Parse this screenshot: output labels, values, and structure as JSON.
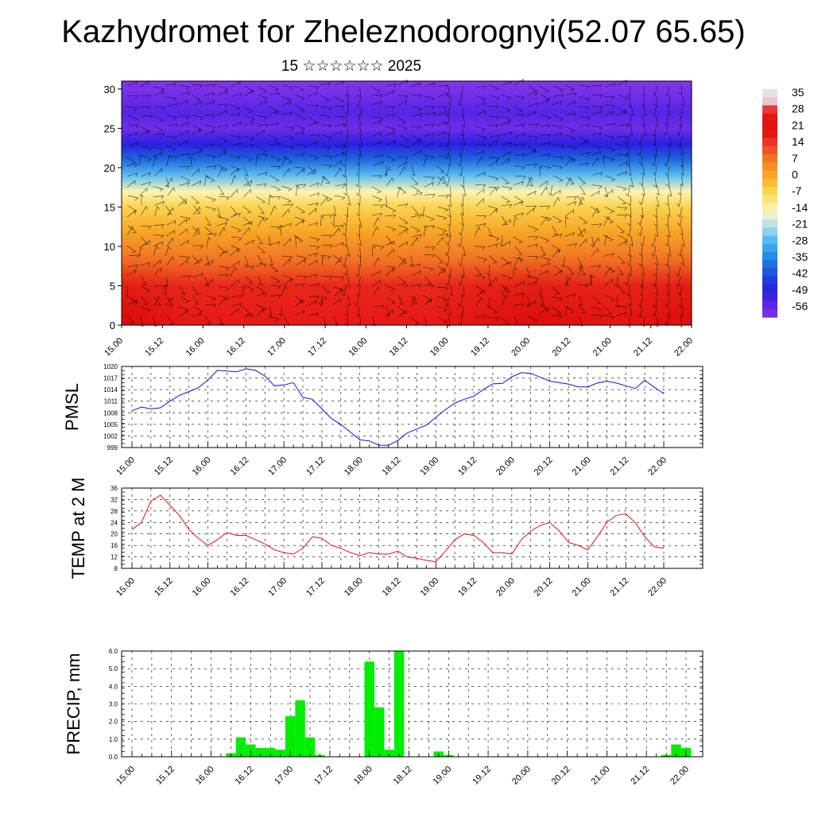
{
  "header": {
    "title": "Kazhydromet for Zheleznodorognyi(52.07 65.65)",
    "subtitle": "15 ☆☆☆☆☆☆ 2025"
  },
  "colorbar": {
    "labels": [
      "35",
      "28",
      "21",
      "14",
      "7",
      "0",
      "-7",
      "-14",
      "-21",
      "-28",
      "-35",
      "-42",
      "-49",
      "-56"
    ],
    "colors": [
      "#e8e0e8",
      "#ee2020",
      "#e01010",
      "#f04020",
      "#f48020",
      "#f8b020",
      "#fce060",
      "#fcf8c0",
      "#b8e0f0",
      "#40b0f0",
      "#2080e0",
      "#2040d8",
      "#4020e8",
      "#8030e8"
    ]
  },
  "x_ticks": [
    "15.00",
    "15.12",
    "16.00",
    "16.12",
    "17.00",
    "17.12",
    "18.00",
    "18.12",
    "19.00",
    "19.12",
    "20.00",
    "20.12",
    "21.00",
    "21.12",
    "22.00"
  ],
  "chart_data": [
    {
      "type": "heatmap",
      "title": "",
      "xlabel": "",
      "ylabel": "",
      "ylim": [
        0,
        31
      ],
      "y_ticks": [
        "0",
        "5",
        "10",
        "15",
        "20",
        "25",
        "30"
      ],
      "profile_levels": [
        0,
        5,
        8,
        12,
        15,
        17,
        19,
        21,
        23,
        25,
        27,
        29,
        31
      ],
      "profile_temps": [
        30,
        18,
        10,
        2,
        -5,
        -13,
        -26,
        -38,
        -49,
        -58,
        -54,
        -58,
        -61
      ]
    },
    {
      "type": "line",
      "ylabel": "PMSL",
      "ylim": [
        999,
        1020
      ],
      "y_ticks": [
        "999",
        "1002",
        "1005",
        "1008",
        "1011",
        "1014",
        "1017",
        "1020"
      ],
      "series": [
        {
          "color": "#1010e0",
          "values": [
            1008.5,
            1009.5,
            1009,
            1009.3,
            1011,
            1012.5,
            1013.5,
            1014.5,
            1016.5,
            1019,
            1018.8,
            1018.6,
            1019.4,
            1019,
            1017.5,
            1015,
            1015.2,
            1015.8,
            1012,
            1011.5,
            1009,
            1006.5,
            1005,
            1003,
            1001,
            1000.7,
            999.6,
            999.6,
            1000.8,
            1002.8,
            1003.8,
            1004.8,
            1006.8,
            1008.8,
            1010.5,
            1011.5,
            1012.3,
            1014,
            1015.5,
            1015.6,
            1017.3,
            1018.4,
            1018.2,
            1017.2,
            1016.2,
            1015.8,
            1015.4,
            1014.7,
            1014.7,
            1015.7,
            1016.2,
            1015.7,
            1015,
            1014.3,
            1016.4,
            1014.6,
            1013
          ]
        }
      ]
    },
    {
      "type": "line",
      "ylabel": "TEMP at 2 M",
      "ylim": [
        8,
        36
      ],
      "y_ticks": [
        "8",
        "12",
        "16",
        "20",
        "24",
        "28",
        "32",
        "36"
      ],
      "series": [
        {
          "color": "#e01010",
          "values": [
            21.5,
            24,
            31.5,
            33.5,
            30,
            26.5,
            21.5,
            18.5,
            16,
            18,
            20.5,
            19.5,
            19.5,
            18,
            16.5,
            14.5,
            13.5,
            13,
            15,
            19,
            18.5,
            16,
            15,
            13.5,
            12.5,
            13.5,
            13,
            13,
            14,
            12,
            11.5,
            10.8,
            10.3,
            14,
            18,
            20,
            19.5,
            17,
            13.5,
            13.5,
            13,
            18,
            21,
            23,
            24,
            21,
            17,
            16,
            14.5,
            19,
            24,
            26.5,
            27,
            24,
            19,
            15.5,
            15
          ]
        }
      ]
    },
    {
      "type": "bar",
      "ylabel": "PRECIP, mm",
      "ylim": [
        0,
        6
      ],
      "y_ticks": [
        "0.0",
        "1.0",
        "2.0",
        "3.0",
        "4.0",
        "5.0",
        "6.0"
      ],
      "series": [
        {
          "color": "#00ee00",
          "values": [
            0,
            0,
            0,
            0,
            0,
            0,
            0,
            0,
            0,
            0,
            0.2,
            1.1,
            0.7,
            0.5,
            0.5,
            0.4,
            2.3,
            3.2,
            1.1,
            0.1,
            0,
            0,
            0,
            0,
            5.4,
            2.8,
            0.4,
            6.0,
            0,
            0,
            0,
            0.3,
            0.1,
            0,
            0,
            0,
            0,
            0,
            0,
            0,
            0,
            0,
            0,
            0,
            0,
            0,
            0,
            0,
            0,
            0,
            0,
            0,
            0,
            0,
            0.1,
            0.7,
            0.5
          ]
        }
      ]
    }
  ]
}
